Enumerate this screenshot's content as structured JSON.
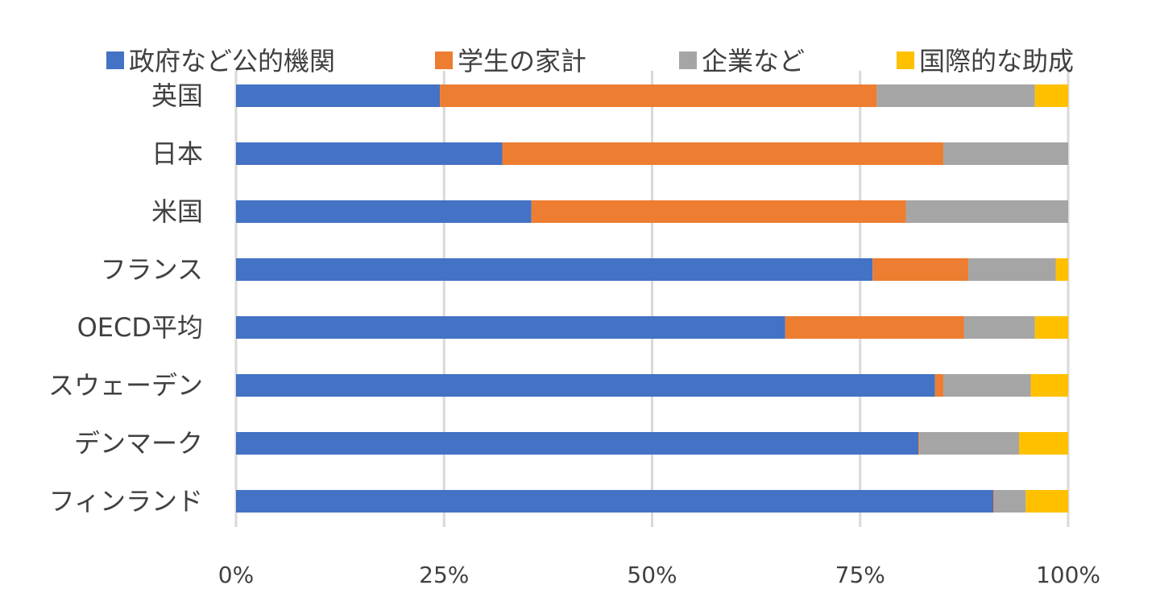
{
  "chart_data": {
    "type": "bar",
    "orientation": "horizontal",
    "stacked": "percent",
    "categories": [
      "英国",
      "日本",
      "米国",
      "フランス",
      "OECD平均",
      "スウェーデン",
      "デンマーク",
      "フィンランド"
    ],
    "series": [
      {
        "name": "政府など公的機関",
        "color": "#4472C4",
        "values": [
          24.5,
          32.0,
          35.5,
          76.5,
          66.0,
          84.0,
          82.0,
          91.0
        ]
      },
      {
        "name": "学生の家計",
        "color": "#ED7D31",
        "values": [
          52.5,
          53.0,
          45.0,
          11.5,
          21.5,
          1.0,
          0.1,
          0.1
        ]
      },
      {
        "name": "企業など",
        "color": "#A5A5A5",
        "values": [
          19.0,
          15.0,
          19.5,
          10.5,
          8.5,
          10.5,
          12.0,
          3.8
        ]
      },
      {
        "name": "国際的な助成",
        "color": "#FFC000",
        "values": [
          4.0,
          0.0,
          0.0,
          1.5,
          4.0,
          4.5,
          5.9,
          5.1
        ]
      }
    ],
    "x_ticks": [
      "0%",
      "25%",
      "50%",
      "75%",
      "100%"
    ],
    "xlim": [
      0,
      100
    ],
    "grid": "vertical",
    "legend": "top"
  }
}
